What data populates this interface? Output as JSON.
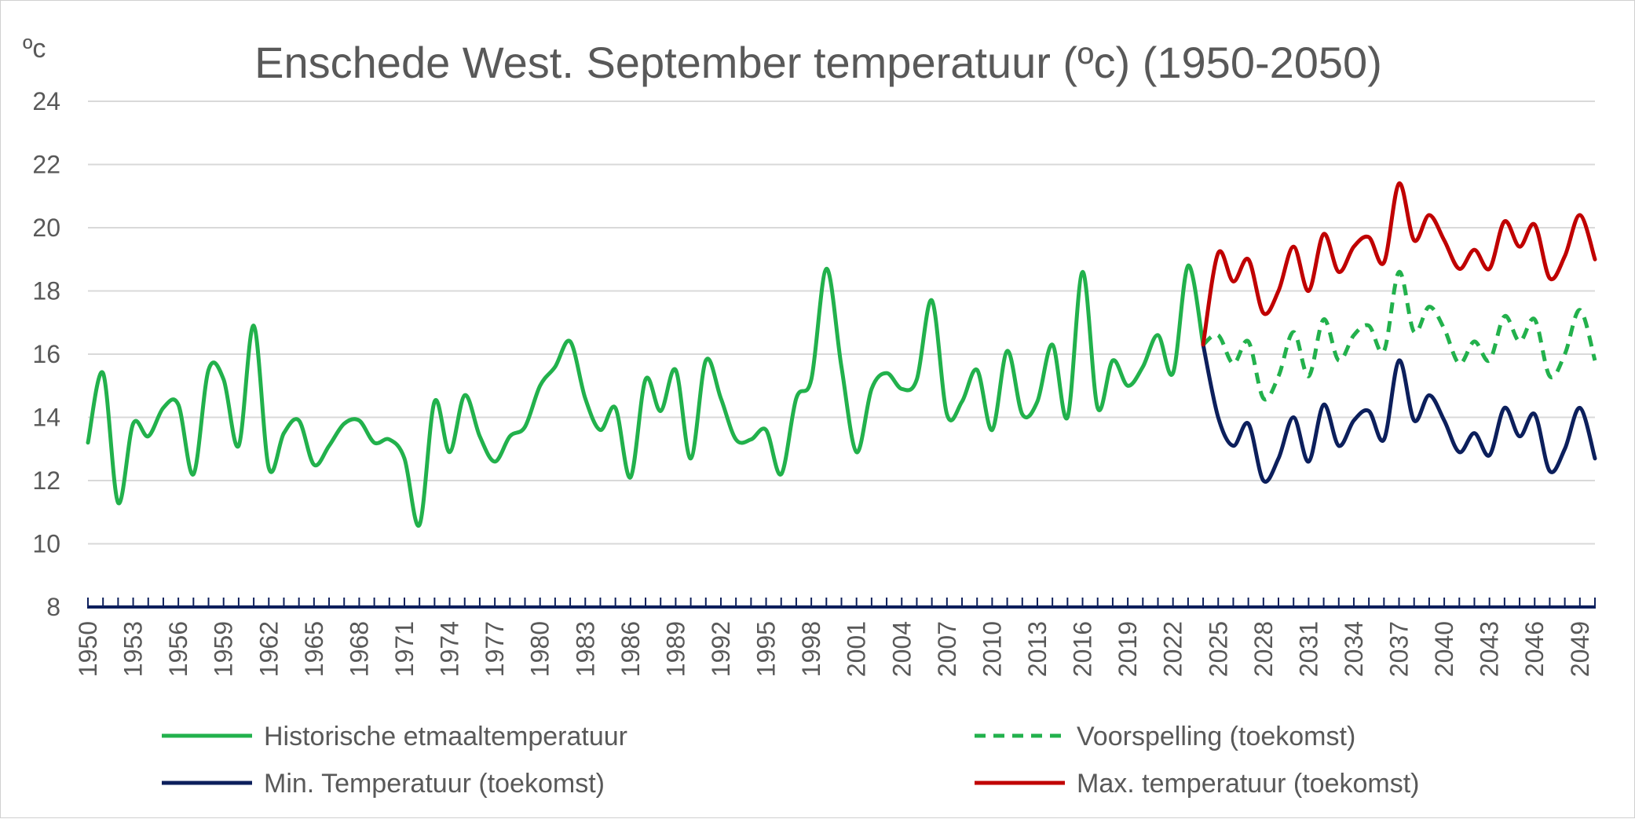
{
  "chart_data": {
    "type": "line",
    "title": "Enschede West. September temperatuur (ºc) (1950-2050)",
    "unit_label": "ºc",
    "ylim": [
      8,
      24
    ],
    "y_ticks": [
      8,
      10,
      12,
      14,
      16,
      18,
      20,
      22,
      24
    ],
    "x_range": [
      1950,
      2050
    ],
    "x_tick_labels": [
      1950,
      1953,
      1956,
      1959,
      1962,
      1965,
      1968,
      1971,
      1974,
      1977,
      1980,
      1983,
      1986,
      1989,
      1992,
      1995,
      1998,
      2001,
      2004,
      2007,
      2010,
      2013,
      2016,
      2019,
      2022,
      2025,
      2028,
      2031,
      2034,
      2037,
      2040,
      2043,
      2046,
      2049
    ],
    "grid": true,
    "legend_position": "bottom",
    "colors": {
      "historic": "#22b14c",
      "forecast": "#22b14c",
      "min": "#0c1f5c",
      "max": "#c00000",
      "axis": "#0c1f5c",
      "grid": "#d9d9d9",
      "text": "#595959"
    },
    "series": [
      {
        "name": "Historische etmaaltemperatuur",
        "style": "solid",
        "points": [
          [
            1950,
            13.2
          ],
          [
            1951,
            15.4
          ],
          [
            1952,
            11.3
          ],
          [
            1953,
            13.8
          ],
          [
            1954,
            13.4
          ],
          [
            1955,
            14.3
          ],
          [
            1956,
            14.4
          ],
          [
            1957,
            12.2
          ],
          [
            1958,
            15.5
          ],
          [
            1959,
            15.2
          ],
          [
            1960,
            13.1
          ],
          [
            1961,
            16.9
          ],
          [
            1962,
            12.4
          ],
          [
            1963,
            13.5
          ],
          [
            1964,
            13.9
          ],
          [
            1965,
            12.5
          ],
          [
            1966,
            13.1
          ],
          [
            1967,
            13.8
          ],
          [
            1968,
            13.9
          ],
          [
            1969,
            13.2
          ],
          [
            1970,
            13.3
          ],
          [
            1971,
            12.7
          ],
          [
            1972,
            10.6
          ],
          [
            1973,
            14.5
          ],
          [
            1974,
            12.9
          ],
          [
            1975,
            14.7
          ],
          [
            1976,
            13.4
          ],
          [
            1977,
            12.6
          ],
          [
            1978,
            13.4
          ],
          [
            1979,
            13.7
          ],
          [
            1980,
            15.0
          ],
          [
            1981,
            15.6
          ],
          [
            1982,
            16.4
          ],
          [
            1983,
            14.6
          ],
          [
            1984,
            13.6
          ],
          [
            1985,
            14.3
          ],
          [
            1986,
            12.1
          ],
          [
            1987,
            15.2
          ],
          [
            1988,
            14.2
          ],
          [
            1989,
            15.5
          ],
          [
            1990,
            12.7
          ],
          [
            1991,
            15.8
          ],
          [
            1992,
            14.6
          ],
          [
            1993,
            13.3
          ],
          [
            1994,
            13.3
          ],
          [
            1995,
            13.6
          ],
          [
            1996,
            12.2
          ],
          [
            1997,
            14.6
          ],
          [
            1998,
            15.2
          ],
          [
            1999,
            18.7
          ],
          [
            2000,
            15.6
          ],
          [
            2001,
            12.9
          ],
          [
            2002,
            14.9
          ],
          [
            2003,
            15.4
          ],
          [
            2004,
            14.9
          ],
          [
            2005,
            15.2
          ],
          [
            2006,
            17.7
          ],
          [
            2007,
            14.1
          ],
          [
            2008,
            14.5
          ],
          [
            2009,
            15.5
          ],
          [
            2010,
            13.6
          ],
          [
            2011,
            16.1
          ],
          [
            2012,
            14.1
          ],
          [
            2013,
            14.5
          ],
          [
            2014,
            16.3
          ],
          [
            2015,
            14.0
          ],
          [
            2016,
            18.6
          ],
          [
            2017,
            14.3
          ],
          [
            2018,
            15.8
          ],
          [
            2019,
            15.0
          ],
          [
            2020,
            15.6
          ],
          [
            2021,
            16.6
          ],
          [
            2022,
            15.4
          ],
          [
            2023,
            18.8
          ],
          [
            2024,
            16.3
          ]
        ]
      },
      {
        "name": "Voorspelling (toekomst)",
        "style": "dashed",
        "points": [
          [
            2024,
            16.3
          ],
          [
            2025,
            16.6
          ],
          [
            2026,
            15.7
          ],
          [
            2027,
            16.4
          ],
          [
            2028,
            14.6
          ],
          [
            2029,
            15.3
          ],
          [
            2030,
            16.7
          ],
          [
            2031,
            15.3
          ],
          [
            2032,
            17.1
          ],
          [
            2033,
            15.8
          ],
          [
            2034,
            16.6
          ],
          [
            2035,
            16.9
          ],
          [
            2036,
            16.1
          ],
          [
            2037,
            18.6
          ],
          [
            2038,
            16.7
          ],
          [
            2039,
            17.5
          ],
          [
            2040,
            16.8
          ],
          [
            2041,
            15.7
          ],
          [
            2042,
            16.4
          ],
          [
            2043,
            15.8
          ],
          [
            2044,
            17.2
          ],
          [
            2045,
            16.4
          ],
          [
            2046,
            17.1
          ],
          [
            2047,
            15.3
          ],
          [
            2048,
            16.0
          ],
          [
            2049,
            17.4
          ],
          [
            2050,
            15.8
          ]
        ]
      },
      {
        "name": "Min. Temperatuur (toekomst)",
        "style": "solid",
        "points": [
          [
            2024,
            16.3
          ],
          [
            2025,
            14.0
          ],
          [
            2026,
            13.1
          ],
          [
            2027,
            13.8
          ],
          [
            2028,
            12.0
          ],
          [
            2029,
            12.7
          ],
          [
            2030,
            14.0
          ],
          [
            2031,
            12.6
          ],
          [
            2032,
            14.4
          ],
          [
            2033,
            13.1
          ],
          [
            2034,
            13.9
          ],
          [
            2035,
            14.2
          ],
          [
            2036,
            13.3
          ],
          [
            2037,
            15.8
          ],
          [
            2038,
            13.9
          ],
          [
            2039,
            14.7
          ],
          [
            2040,
            13.9
          ],
          [
            2041,
            12.9
          ],
          [
            2042,
            13.5
          ],
          [
            2043,
            12.8
          ],
          [
            2044,
            14.3
          ],
          [
            2045,
            13.4
          ],
          [
            2046,
            14.1
          ],
          [
            2047,
            12.3
          ],
          [
            2048,
            13.0
          ],
          [
            2049,
            14.3
          ],
          [
            2050,
            12.7
          ]
        ]
      },
      {
        "name": "Max. temperatuur (toekomst)",
        "style": "solid",
        "points": [
          [
            2024,
            16.3
          ],
          [
            2025,
            19.2
          ],
          [
            2026,
            18.3
          ],
          [
            2027,
            19.0
          ],
          [
            2028,
            17.3
          ],
          [
            2029,
            18.0
          ],
          [
            2030,
            19.4
          ],
          [
            2031,
            18.0
          ],
          [
            2032,
            19.8
          ],
          [
            2033,
            18.6
          ],
          [
            2034,
            19.4
          ],
          [
            2035,
            19.7
          ],
          [
            2036,
            18.9
          ],
          [
            2037,
            21.4
          ],
          [
            2038,
            19.6
          ],
          [
            2039,
            20.4
          ],
          [
            2040,
            19.6
          ],
          [
            2041,
            18.7
          ],
          [
            2042,
            19.3
          ],
          [
            2043,
            18.7
          ],
          [
            2044,
            20.2
          ],
          [
            2045,
            19.4
          ],
          [
            2046,
            20.1
          ],
          [
            2047,
            18.4
          ],
          [
            2048,
            19.1
          ],
          [
            2049,
            20.4
          ],
          [
            2050,
            19.0
          ]
        ]
      }
    ]
  }
}
